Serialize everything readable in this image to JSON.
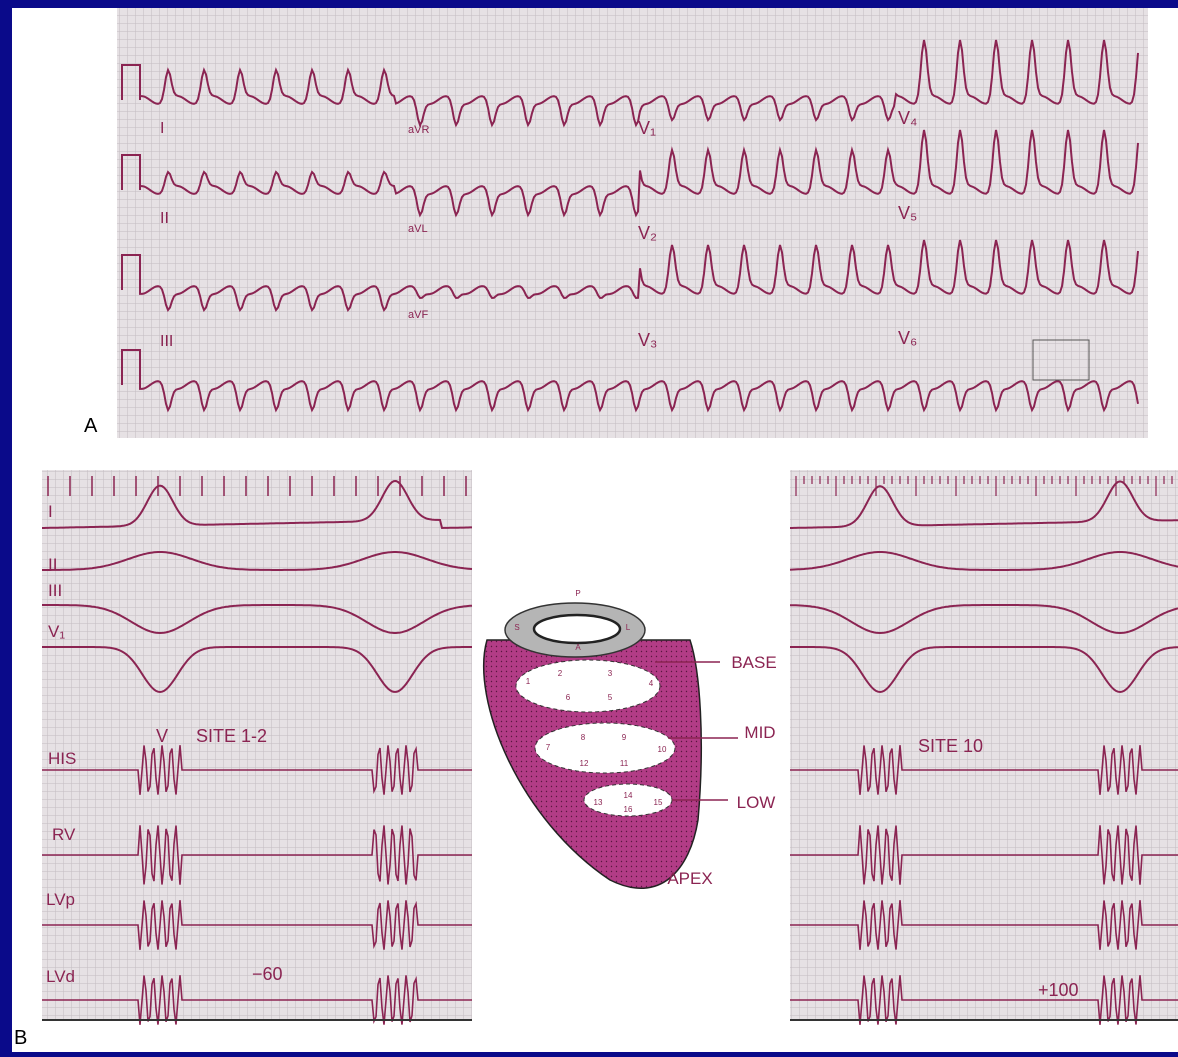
{
  "panel_a": {
    "label": "A",
    "leads": [
      "I",
      "aVR",
      "V₁",
      "V₄",
      "II",
      "aVL",
      "V₂",
      "V₅",
      "III",
      "aVF",
      "V₃",
      "V₆"
    ]
  },
  "panel_b": {
    "label": "B",
    "left": {
      "leads": [
        "I",
        "II",
        "III",
        "V₁",
        "HIS",
        "RV",
        "LVp",
        "LVd"
      ],
      "annotations": [
        "V",
        "SITE 1-2",
        "−60"
      ]
    },
    "diagram": {
      "orientation": [
        "P",
        "S",
        "L",
        "A"
      ],
      "levels": [
        "BASE",
        "MID",
        "LOW"
      ],
      "apex": "APEX",
      "segments": [
        1,
        2,
        3,
        4,
        6,
        5,
        7,
        8,
        9,
        10,
        12,
        11,
        13,
        14,
        15,
        16
      ]
    },
    "right": {
      "annotations": [
        "SITE 10",
        "+100"
      ]
    }
  }
}
